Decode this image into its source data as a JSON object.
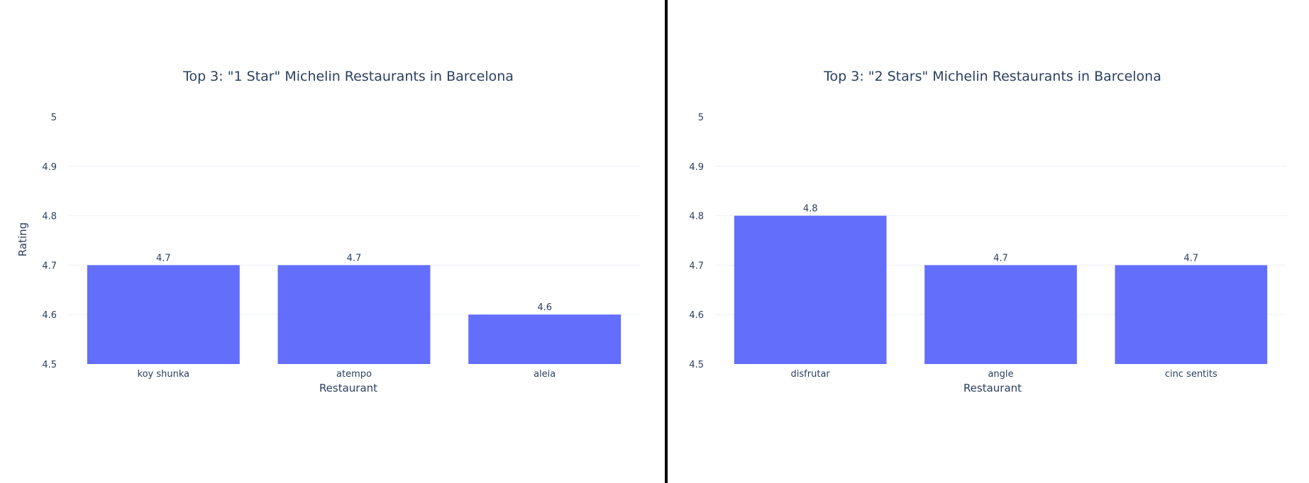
{
  "chart_data": [
    {
      "type": "bar",
      "title": "Top 3: \"1 Star\" Michelin Restaurants in Barcelona",
      "xlabel": "Restaurant",
      "ylabel": "Rating",
      "categories": [
        "koy shunka",
        "atempo",
        "aleia"
      ],
      "values": [
        4.7,
        4.7,
        4.6
      ],
      "value_labels": [
        "4.7",
        "4.7",
        "4.6"
      ],
      "ylim": [
        4.5,
        5
      ],
      "yticks": [
        4.5,
        4.6,
        4.7,
        4.8,
        4.9,
        5
      ],
      "ytick_labels": [
        "4.5",
        "4.6",
        "4.7",
        "4.8",
        "4.9",
        "5"
      ],
      "grid": true,
      "bar_color": "#636efa"
    },
    {
      "type": "bar",
      "title": "Top 3: \"2 Stars\" Michelin Restaurants in Barcelona",
      "xlabel": "Restaurant",
      "ylabel": "",
      "categories": [
        "disfrutar",
        "angle",
        "cinc sentits"
      ],
      "values": [
        4.8,
        4.7,
        4.7
      ],
      "value_labels": [
        "4.8",
        "4.7",
        "4.7"
      ],
      "ylim": [
        4.5,
        5
      ],
      "yticks": [
        4.5,
        4.6,
        4.7,
        4.8,
        4.9,
        5
      ],
      "ytick_labels": [
        "4.5",
        "4.6",
        "4.7",
        "4.8",
        "4.9",
        "5"
      ],
      "grid": true,
      "bar_color": "#636efa"
    }
  ]
}
